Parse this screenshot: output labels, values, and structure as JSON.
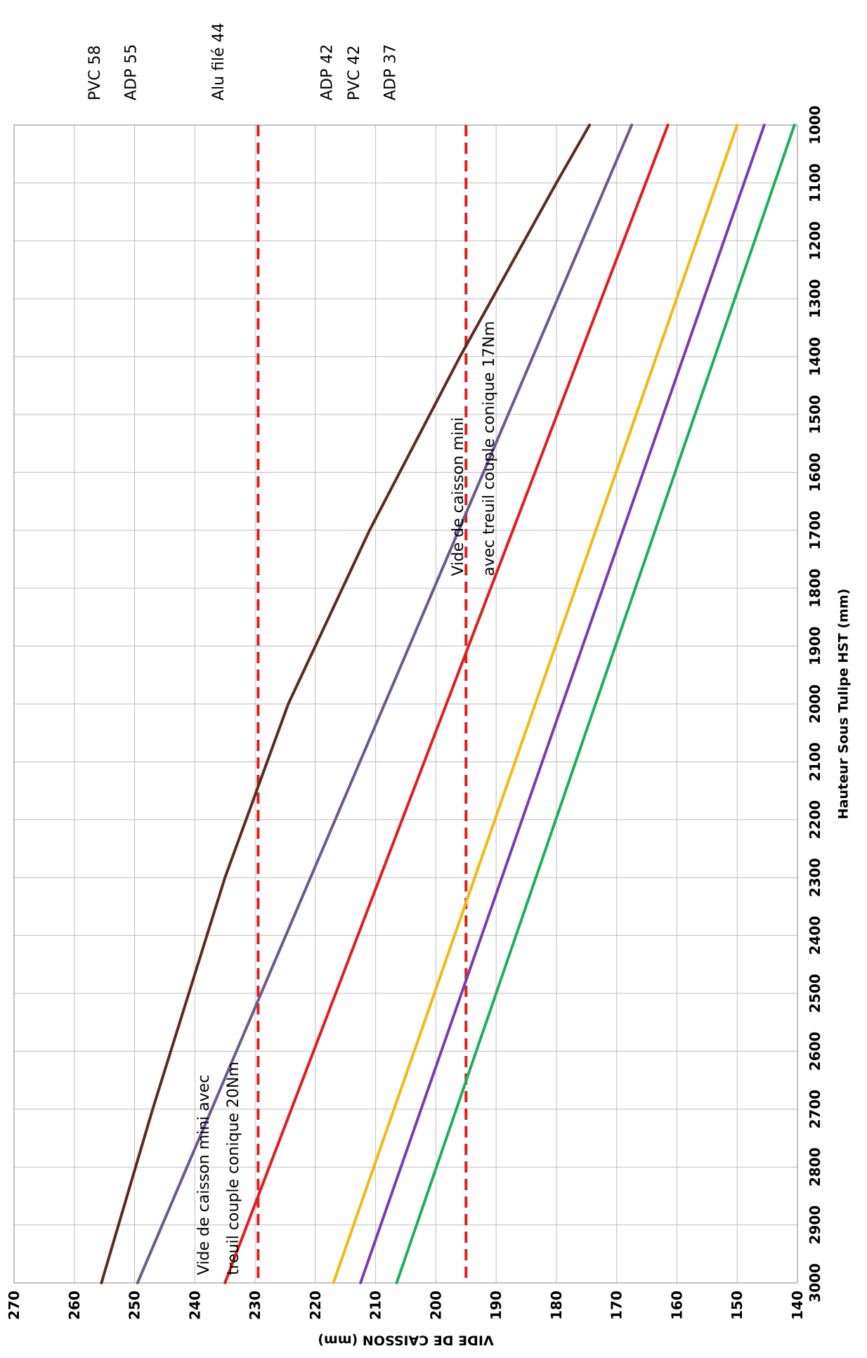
{
  "chart_data": {
    "type": "line",
    "xlabel": "Hauteur Sous Tulipe HST (mm)",
    "ylabel": "VIDE DE CAISSON (mm)",
    "xlim": [
      1000,
      3000
    ],
    "ylim": [
      140,
      270
    ],
    "x_ticks": [
      "1000",
      "1100",
      "1200",
      "1300",
      "1400",
      "1500",
      "1600",
      "1700",
      "1800",
      "1900",
      "2000",
      "2100",
      "2200",
      "2300",
      "2400",
      "2500",
      "2600",
      "2700",
      "2800",
      "2900",
      "3000"
    ],
    "y_ticks": [
      "140",
      "150",
      "160",
      "170",
      "180",
      "190",
      "200",
      "210",
      "220",
      "230",
      "240",
      "250",
      "260",
      "270"
    ],
    "grid": true,
    "orientation": "rotated-90-ccw",
    "x": [
      1000,
      3000
    ],
    "series": [
      {
        "name": "PVC 58",
        "color": "#5c2b1e",
        "x": [
          1000,
          1100,
          1400,
          1700,
          2000,
          2300,
          2700,
          3000
        ],
        "values": [
          174.5,
          180,
          196,
          211,
          224.5,
          235,
          247,
          255.5
        ]
      },
      {
        "name": "ADP 55",
        "color": "#6b5a8e",
        "values": [
          167.5,
          249.5
        ]
      },
      {
        "name": "Alu filé  44",
        "color": "#e31c1c",
        "values": [
          161.5,
          235
        ]
      },
      {
        "name": "ADP 42",
        "color": "#f3b90f",
        "values": [
          150,
          217
        ]
      },
      {
        "name": "PVC 42",
        "color": "#7a3db0",
        "values": [
          145.5,
          212.5
        ]
      },
      {
        "name": "ADP 37",
        "color": "#1fae5a",
        "values": [
          140.5,
          206.5
        ]
      }
    ],
    "reference_lines": [
      {
        "value": 229.5,
        "color": "#e31c1c",
        "style": "dashed",
        "label_lines": [
          "Vide de caisson mini avec",
          "treuil couple conique 20Nm"
        ]
      },
      {
        "value": 195,
        "color": "#e31c1c",
        "style": "dashed",
        "label_lines": [
          "Vide de caisson mini",
          "avec treuil couple conique 17Nm"
        ]
      }
    ]
  }
}
